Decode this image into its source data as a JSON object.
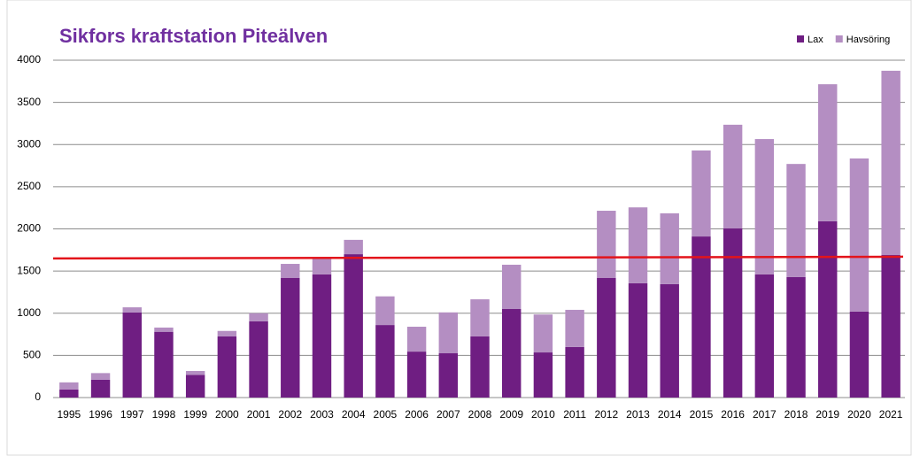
{
  "chart_data": {
    "type": "stacked_bar",
    "title": "Sikfors kraftstation Piteälven",
    "categories": [
      "1995",
      "1996",
      "1997",
      "1998",
      "1999",
      "2000",
      "2001",
      "2002",
      "2003",
      "2004",
      "2005",
      "2006",
      "2007",
      "2008",
      "2009",
      "2010",
      "2011",
      "2012",
      "2013",
      "2014",
      "2015",
      "2016",
      "2017",
      "2018",
      "2019",
      "2020",
      "2021"
    ],
    "series": [
      {
        "name": "Lax",
        "color": "#6f1e82",
        "values": [
          95,
          210,
          1010,
          780,
          270,
          725,
          905,
          1420,
          1460,
          1700,
          860,
          545,
          525,
          725,
          1050,
          535,
          600,
          1420,
          1355,
          1345,
          1910,
          2005,
          1460,
          1430,
          2090,
          1020,
          1690
        ]
      },
      {
        "name": "Havsöring",
        "color": "#b48ec2",
        "values": [
          85,
          80,
          60,
          50,
          45,
          65,
          95,
          165,
          200,
          170,
          340,
          295,
          485,
          440,
          525,
          450,
          440,
          795,
          900,
          840,
          1020,
          1230,
          1605,
          1340,
          1625,
          1815,
          2185
        ]
      }
    ],
    "reference_line": {
      "color": "#e3141b",
      "start": 1650,
      "end": 1670
    },
    "ylim": [
      0,
      4000
    ],
    "yticks": [
      0,
      500,
      1000,
      1500,
      2000,
      2500,
      3000,
      3500,
      4000
    ],
    "grid": true,
    "legend": "top-right"
  }
}
